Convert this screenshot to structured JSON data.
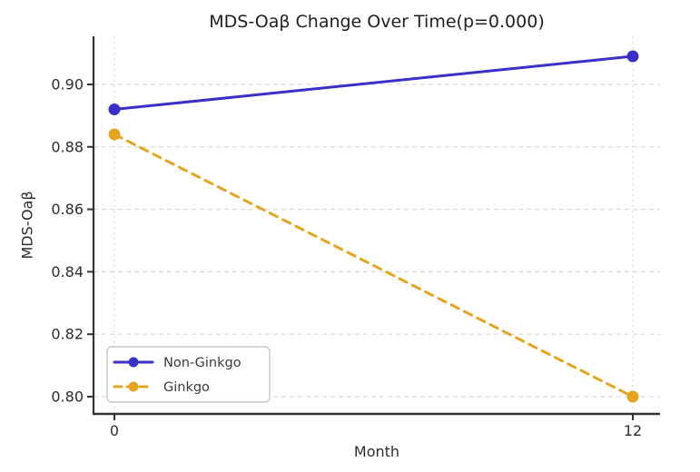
{
  "chart_data": {
    "type": "line",
    "title": "MDS-Oaβ Change Over Time(p=0.000)",
    "xlabel": "Month",
    "ylabel": "MDS-Oaβ",
    "x": [
      0,
      12
    ],
    "xtick_labels": [
      "0",
      "12"
    ],
    "yticks": [
      0.8,
      0.82,
      0.84,
      0.86,
      0.88,
      0.9
    ],
    "ytick_labels": [
      "0.80",
      "0.82",
      "0.84",
      "0.86",
      "0.88",
      "0.90"
    ],
    "xlim": [
      -0.58,
      12.63
    ],
    "ylim": [
      0.794,
      0.915
    ],
    "grid": true,
    "legend_position": "lower left",
    "series": [
      {
        "name": "Non-Ginkgo",
        "values": [
          0.892,
          0.909
        ],
        "color": "#3a2fc8",
        "style": "solid",
        "marker": "circle"
      },
      {
        "name": "Ginkgo",
        "values": [
          0.884,
          0.8
        ],
        "color": "#e5a41f",
        "style": "dashed",
        "marker": "circle"
      }
    ],
    "colors": {
      "grid": "#d9d9d9",
      "spine": "#333333",
      "tick_text": "#2d2d2d",
      "legend_border": "#c9c9c9"
    }
  }
}
